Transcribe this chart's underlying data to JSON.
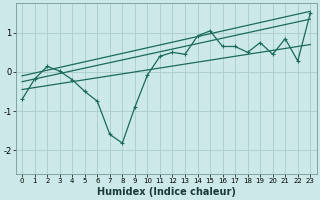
{
  "xlabel": "Humidex (Indice chaleur)",
  "ylabel": "",
  "background_color": "#cce8e8",
  "line_color": "#1a6b5a",
  "grid_color": "#aacccc",
  "xlim": [
    -0.5,
    23.5
  ],
  "ylim": [
    -2.6,
    1.75
  ],
  "yticks": [
    -2,
    -1,
    0,
    1
  ],
  "xticks": [
    0,
    1,
    2,
    3,
    4,
    5,
    6,
    7,
    8,
    9,
    10,
    11,
    12,
    13,
    14,
    15,
    16,
    17,
    18,
    19,
    20,
    21,
    22,
    23
  ],
  "lines": [
    {
      "x": [
        0,
        1,
        2,
        3,
        4,
        5,
        6,
        7,
        8,
        9,
        10,
        11,
        12,
        13,
        14,
        15,
        16,
        17,
        18,
        19,
        20,
        21,
        22,
        23
      ],
      "y": [
        -0.7,
        -0.18,
        0.14,
        0.02,
        -0.2,
        -0.5,
        -0.75,
        -1.6,
        -1.82,
        -0.9,
        -0.08,
        0.4,
        0.5,
        0.45,
        0.92,
        1.05,
        0.65,
        0.65,
        0.5,
        0.75,
        0.45,
        0.85,
        0.28,
        1.5
      ]
    },
    {
      "x": [
        0,
        23
      ],
      "y": [
        -0.1,
        1.55
      ]
    },
    {
      "x": [
        0,
        23
      ],
      "y": [
        -0.25,
        1.35
      ]
    },
    {
      "x": [
        0,
        23
      ],
      "y": [
        -0.45,
        0.7
      ]
    }
  ]
}
